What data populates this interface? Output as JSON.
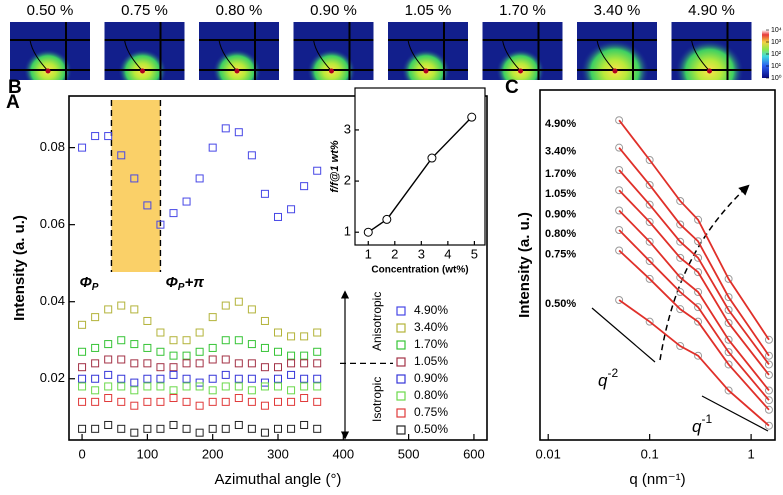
{
  "panel_a": {
    "label": "A",
    "images": [
      "0.50 %",
      "0.75 %",
      "0.80 %",
      "0.90 %",
      "1.05 %",
      "1.70 %",
      "3.40 %",
      "4.90 %"
    ],
    "colorbar": {
      "scale": "log",
      "lim": [
        1,
        10000
      ],
      "ticks": [
        {
          "value": 10000,
          "label": "10⁴"
        },
        {
          "value": 1000,
          "label": "10³"
        },
        {
          "value": 100,
          "label": "10²"
        },
        {
          "value": 10,
          "label": "10¹"
        },
        {
          "value": 1,
          "label": "10⁰"
        }
      ]
    }
  },
  "chart_data": [
    {
      "type": "scatter",
      "panel": "B",
      "xlabel": "Azimuthal angle (°)",
      "ylabel": "Intensity (a. u.)",
      "x": [
        0,
        20,
        40,
        60,
        80,
        100,
        120,
        140,
        160,
        180,
        200,
        220,
        240,
        260,
        280,
        300,
        320,
        340,
        360
      ],
      "series": [
        {
          "name": "4.90%",
          "color": "#4747e6",
          "values": [
            0.08,
            0.083,
            0.083,
            0.078,
            0.072,
            0.065,
            0.06,
            0.063,
            0.066,
            0.072,
            0.08,
            0.085,
            0.084,
            0.078,
            0.068,
            0.062,
            0.064,
            0.07,
            0.074
          ]
        },
        {
          "name": "3.40%",
          "color": "#b3b33a",
          "values": [
            0.034,
            0.036,
            0.038,
            0.039,
            0.038,
            0.035,
            0.032,
            0.03,
            0.03,
            0.032,
            0.036,
            0.039,
            0.04,
            0.038,
            0.035,
            0.032,
            0.031,
            0.031,
            0.032
          ]
        },
        {
          "name": "1.70%",
          "color": "#36c436",
          "values": [
            0.027,
            0.028,
            0.029,
            0.03,
            0.029,
            0.028,
            0.027,
            0.026,
            0.026,
            0.027,
            0.028,
            0.03,
            0.03,
            0.029,
            0.028,
            0.027,
            0.026,
            0.026,
            0.027
          ]
        },
        {
          "name": "1.05%",
          "color": "#a33246",
          "values": [
            0.023,
            0.024,
            0.025,
            0.025,
            0.024,
            0.024,
            0.023,
            0.023,
            0.024,
            0.024,
            0.025,
            0.025,
            0.024,
            0.024,
            0.023,
            0.023,
            0.024,
            0.024,
            0.024
          ]
        },
        {
          "name": "0.90%",
          "color": "#3535d8",
          "values": [
            0.02,
            0.02,
            0.021,
            0.02,
            0.019,
            0.02,
            0.02,
            0.021,
            0.02,
            0.019,
            0.02,
            0.021,
            0.02,
            0.02,
            0.019,
            0.02,
            0.021,
            0.02,
            0.02
          ]
        },
        {
          "name": "0.80%",
          "color": "#6ad94a",
          "values": [
            0.018,
            0.017,
            0.018,
            0.018,
            0.017,
            0.018,
            0.018,
            0.017,
            0.018,
            0.018,
            0.017,
            0.018,
            0.018,
            0.017,
            0.018,
            0.018,
            0.017,
            0.018,
            0.018
          ]
        },
        {
          "name": "0.75%",
          "color": "#e03a3a",
          "values": [
            0.014,
            0.014,
            0.015,
            0.014,
            0.013,
            0.014,
            0.014,
            0.015,
            0.014,
            0.013,
            0.014,
            0.014,
            0.015,
            0.014,
            0.013,
            0.014,
            0.014,
            0.015,
            0.014
          ]
        },
        {
          "name": "0.50%",
          "color": "#222222",
          "values": [
            0.007,
            0.007,
            0.008,
            0.007,
            0.006,
            0.007,
            0.007,
            0.008,
            0.007,
            0.006,
            0.007,
            0.007,
            0.008,
            0.007,
            0.006,
            0.007,
            0.007,
            0.008,
            0.007
          ]
        }
      ],
      "xlim": [
        -20,
        620
      ],
      "ylim": [
        0.0041,
        0.0934
      ],
      "xticks": [
        0,
        100,
        200,
        300,
        400,
        500,
        600
      ],
      "yticks": [
        0.02,
        0.04,
        0.06,
        0.08
      ],
      "legend": "lower right",
      "shade": {
        "x": [
          45,
          120
        ],
        "color": "#f9c84e"
      },
      "annotations": [
        {
          "base": "Φ",
          "sub": "P"
        },
        {
          "base": "Φ",
          "sub": "P",
          "tail": "+π"
        }
      ],
      "boundary": 0.024,
      "regions": [
        "Anisotropic",
        "Isotropic"
      ]
    },
    {
      "type": "line",
      "xlabel": "Concentration (wt%)",
      "ylabel": "f/f@1 wt%",
      "x": [
        1,
        1.7,
        3.4,
        4.9
      ],
      "values": [
        1,
        1.25,
        2.45,
        3.25
      ],
      "color": "#000000",
      "xlim": [
        0.5,
        5.4
      ],
      "ylim": [
        0.75,
        3.82
      ],
      "xticks": [
        1,
        2,
        3,
        4,
        5
      ],
      "yticks": [
        1,
        2,
        3
      ]
    },
    {
      "type": "scatter-line",
      "panel": "C",
      "xlabel": "q (nm⁻¹)",
      "ylabel": "Intensity (a. u.)",
      "xscale": "log",
      "yscale": "log",
      "x": [
        0.05,
        0.1,
        0.2,
        0.3,
        0.6,
        1.5
      ],
      "series": [
        {
          "name": "4.90%",
          "values": [
            0.37,
            0.1,
            0.026,
            0.014,
            0.002,
            0.00027
          ]
        },
        {
          "name": "3.40%",
          "values": [
            0.15,
            0.044,
            0.012,
            0.0069,
            0.0011,
            0.00016
          ]
        },
        {
          "name": "1.70%",
          "values": [
            0.072,
            0.023,
            0.0068,
            0.004,
            0.00072,
            0.00012
          ]
        },
        {
          "name": "1.05%",
          "values": [
            0.037,
            0.013,
            0.004,
            0.0025,
            0.00047,
            8.5e-05
          ]
        },
        {
          "name": "0.90%",
          "values": [
            0.019,
            0.0068,
            0.0021,
            0.0013,
            0.00027,
            5.1e-05
          ]
        },
        {
          "name": "0.80%",
          "values": [
            0.01,
            0.0036,
            0.0013,
            0.00079,
            0.00018,
            3.7e-05
          ]
        },
        {
          "name": "0.75%",
          "values": [
            0.0051,
            0.002,
            0.00074,
            0.00049,
            0.00012,
            2.7e-05
          ]
        },
        {
          "name": "0.50%",
          "values": [
            0.001,
            0.00049,
            0.00022,
            0.00016,
            5.1e-05,
            1.6e-05
          ]
        }
      ],
      "marker_color": "#9a9a9a",
      "line_color": "#e0302a",
      "xlim": [
        0.0083,
        1.72
      ],
      "ylim": [
        1e-05,
        1
      ],
      "xticks": [
        0.01,
        0.1,
        1
      ],
      "annotations": [
        {
          "base": "q",
          "sup": "-2"
        },
        {
          "base": "q",
          "sup": "-1"
        }
      ]
    }
  ]
}
